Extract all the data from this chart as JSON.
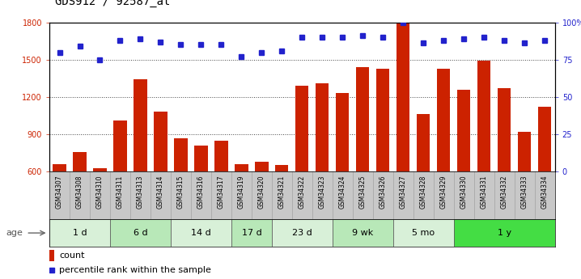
{
  "title": "GDS912 / 92587_at",
  "samples": [
    "GSM34307",
    "GSM34308",
    "GSM34310",
    "GSM34311",
    "GSM34313",
    "GSM34314",
    "GSM34315",
    "GSM34316",
    "GSM34317",
    "GSM34319",
    "GSM34320",
    "GSM34321",
    "GSM34322",
    "GSM34323",
    "GSM34324",
    "GSM34325",
    "GSM34326",
    "GSM34327",
    "GSM34328",
    "GSM34329",
    "GSM34330",
    "GSM34331",
    "GSM34332",
    "GSM34333",
    "GSM34334"
  ],
  "counts": [
    660,
    760,
    630,
    1010,
    1340,
    1080,
    870,
    810,
    850,
    660,
    680,
    650,
    1290,
    1310,
    1230,
    1440,
    1430,
    1790,
    1060,
    1430,
    1260,
    1490,
    1270,
    920,
    1120
  ],
  "percentiles": [
    80,
    84,
    75,
    88,
    89,
    87,
    85,
    85,
    85,
    77,
    80,
    81,
    90,
    90,
    90,
    91,
    90,
    100,
    86,
    88,
    89,
    90,
    88,
    86,
    88
  ],
  "groups": [
    {
      "label": "1 d",
      "start": 0,
      "end": 3,
      "color": "#d8f0d8"
    },
    {
      "label": "6 d",
      "start": 3,
      "end": 6,
      "color": "#b8e8b8"
    },
    {
      "label": "14 d",
      "start": 6,
      "end": 9,
      "color": "#d8f0d8"
    },
    {
      "label": "17 d",
      "start": 9,
      "end": 11,
      "color": "#b8e8b8"
    },
    {
      "label": "23 d",
      "start": 11,
      "end": 14,
      "color": "#d8f0d8"
    },
    {
      "label": "9 wk",
      "start": 14,
      "end": 17,
      "color": "#b8e8b8"
    },
    {
      "label": "5 mo",
      "start": 17,
      "end": 20,
      "color": "#d8f0d8"
    },
    {
      "label": "1 y",
      "start": 20,
      "end": 25,
      "color": "#44dd44"
    }
  ],
  "ylim_left": [
    600,
    1800
  ],
  "ylim_right": [
    0,
    100
  ],
  "yticks_left": [
    600,
    900,
    1200,
    1500,
    1800
  ],
  "yticks_right": [
    0,
    25,
    50,
    75,
    100
  ],
  "bar_color": "#cc2200",
  "dot_color": "#2222cc",
  "dotted_vals": [
    1500,
    1200,
    900
  ],
  "sample_bg": "#c8c8c8",
  "age_label": "age",
  "legend_count": "count",
  "legend_percentile": "percentile rank within the sample",
  "title_fontsize": 10,
  "tick_fontsize": 7,
  "sample_fontsize": 5.5,
  "group_fontsize": 8,
  "legend_fontsize": 8
}
